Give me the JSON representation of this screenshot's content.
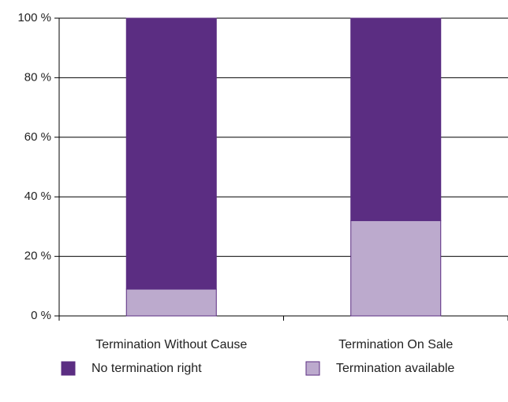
{
  "chart_data": {
    "type": "stacked_bar",
    "categories": [
      "Termination Without Cause",
      "Termination On Sale"
    ],
    "series": [
      {
        "name": "No termination right",
        "color": "#5b2d82",
        "values": [
          91,
          68
        ]
      },
      {
        "name": "Termination available",
        "color": "#bcaacd",
        "values": [
          9,
          32
        ]
      }
    ],
    "ylim": [
      0,
      100
    ],
    "yticks": [
      {
        "value": 0,
        "label": "0 %"
      },
      {
        "value": 20,
        "label": "20 %"
      },
      {
        "value": 40,
        "label": "40 %"
      },
      {
        "value": 60,
        "label": "60 %"
      },
      {
        "value": 80,
        "label": "80 %"
      },
      {
        "value": 100,
        "label": "100 %"
      }
    ],
    "grid": true,
    "legend": "bottom"
  }
}
